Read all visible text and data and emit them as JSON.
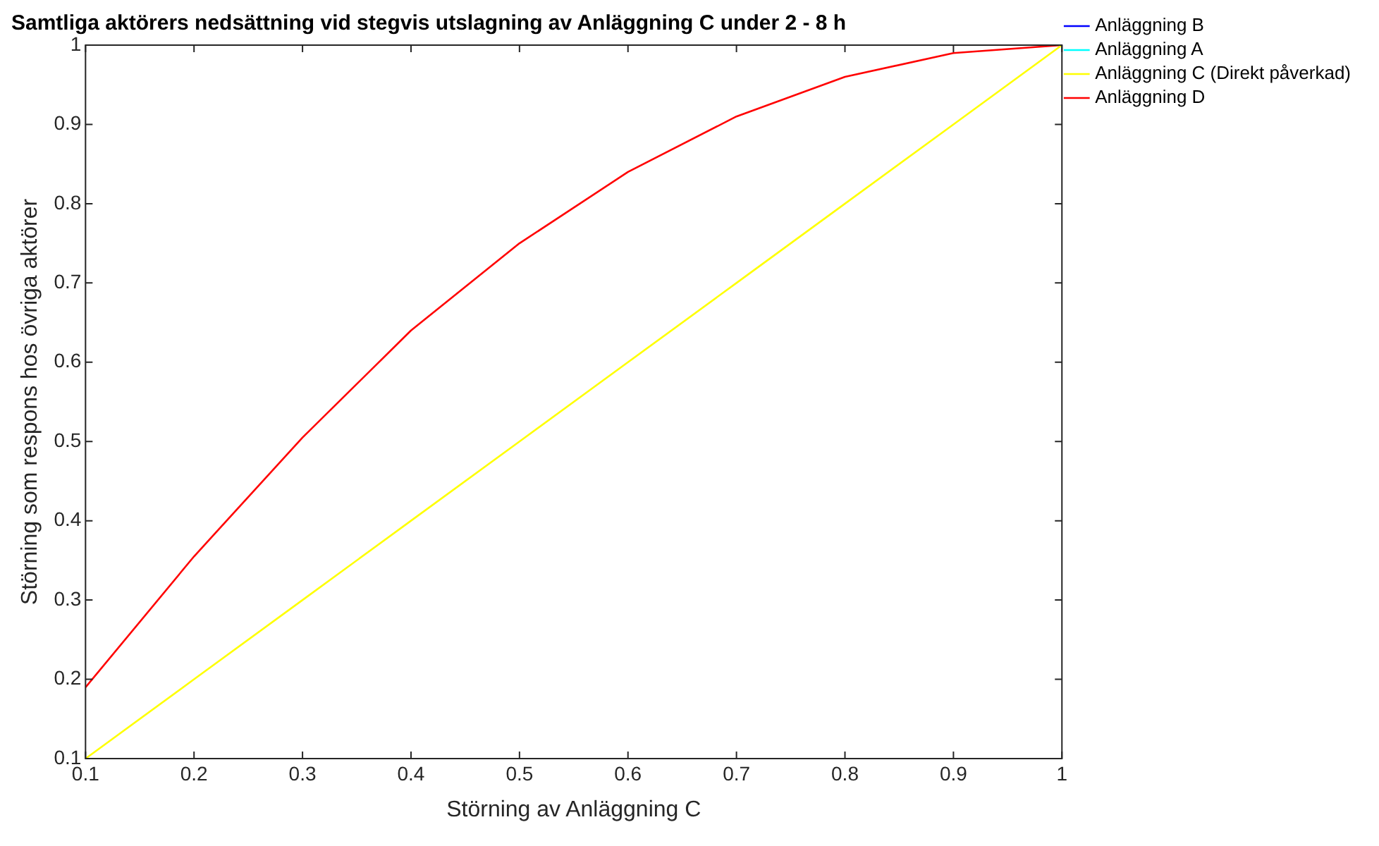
{
  "chart_data": {
    "type": "line",
    "title": "Samtliga aktörers nedsättning vid stegvis utslagning av Anläggning C under 2 - 8 h",
    "xlabel": "Störning av Anläggning C",
    "ylabel": "Störning som respons hos övriga aktörer",
    "x": [
      0.1,
      0.2,
      0.3,
      0.4,
      0.5,
      0.6,
      0.7,
      0.8,
      0.9,
      1
    ],
    "series": [
      {
        "name": "Anläggning B",
        "color": "#0000ff",
        "values": [
          null,
          null,
          null,
          null,
          null,
          null,
          null,
          null,
          null,
          null
        ]
      },
      {
        "name": "Anläggning A",
        "color": "#00ffff",
        "values": [
          null,
          null,
          null,
          null,
          null,
          null,
          null,
          null,
          null,
          null
        ]
      },
      {
        "name": "Anläggning C (Direkt påverkad)",
        "color": "#ffff00",
        "values": [
          0.1,
          0.2,
          0.3,
          0.4,
          0.5,
          0.6,
          0.7,
          0.8,
          0.9,
          1
        ]
      },
      {
        "name": "Anläggning D",
        "color": "#ff0000",
        "values": [
          0.19,
          0.355,
          0.505,
          0.64,
          0.75,
          0.84,
          0.91,
          0.96,
          0.99,
          1
        ]
      }
    ],
    "xlim": [
      0.1,
      1
    ],
    "xticks": [
      0.1,
      0.2,
      0.3,
      0.4,
      0.5,
      0.6,
      0.7,
      0.8,
      0.9,
      1
    ],
    "ylim": [
      0.1,
      1
    ],
    "yticks": [
      0.1,
      0.2,
      0.3,
      0.4,
      0.5,
      0.6,
      0.7,
      0.8,
      0.9,
      1
    ],
    "grid": false,
    "legend": "right",
    "marker": "none",
    "line_style": "solid"
  }
}
